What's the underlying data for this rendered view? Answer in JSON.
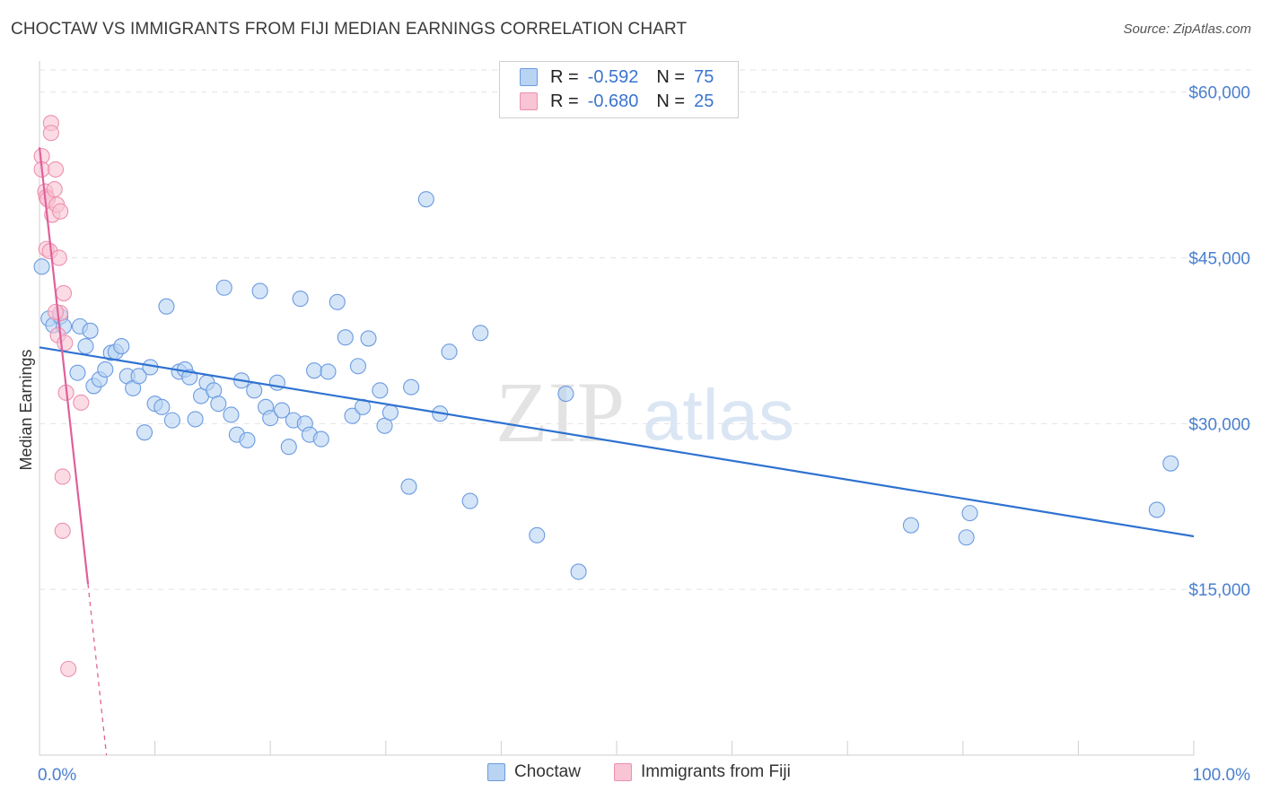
{
  "header": {
    "title": "CHOCTAW VS IMMIGRANTS FROM FIJI MEDIAN EARNINGS CORRELATION CHART",
    "source": "Source: ZipAtlas.com"
  },
  "watermark": {
    "zip": "ZIP",
    "atlas": "atlas"
  },
  "legend": {
    "rows": [
      {
        "r_label": "R =",
        "r_value": "-0.592",
        "n_label": "N =",
        "n_value": "75"
      },
      {
        "r_label": "R =",
        "r_value": "-0.680",
        "n_label": "N =",
        "n_value": "25"
      }
    ]
  },
  "bottom_legend": {
    "choctaw": "Choctaw",
    "fiji": "Immigrants from Fiji"
  },
  "colors": {
    "choctaw_fill": "#b9d3f3",
    "choctaw_stroke": "#6b9be0",
    "choctaw_line": "#2f72d0",
    "fiji_fill": "#f9c4d4",
    "fiji_stroke": "#ee8fae",
    "fiji_line": "#e0609a",
    "grid": "#e2e2e2",
    "tick_label": "#4a7fcf"
  },
  "chart_data": {
    "type": "scatter",
    "title": "CHOCTAW VS IMMIGRANTS FROM FIJI MEDIAN EARNINGS CORRELATION CHART",
    "xlabel": "",
    "ylabel": "Median Earnings",
    "xlim": [
      0,
      100
    ],
    "ylim": [
      0,
      62000
    ],
    "x_tick_labels": [
      "0.0%",
      "100.0%"
    ],
    "y_ticks": [
      15000,
      30000,
      45000,
      60000
    ],
    "y_tick_labels": [
      "$15,000",
      "$30,000",
      "$45,000",
      "$60,000"
    ],
    "grid": true,
    "legend_position": "top-center",
    "series": [
      {
        "name": "Choctaw",
        "points": [
          [
            0.2,
            44200
          ],
          [
            0.8,
            39500
          ],
          [
            1.2,
            38900
          ],
          [
            1.8,
            39700
          ],
          [
            2.1,
            38800
          ],
          [
            3.3,
            34600
          ],
          [
            3.5,
            38800
          ],
          [
            4.0,
            37000
          ],
          [
            4.4,
            38400
          ],
          [
            4.7,
            33400
          ],
          [
            5.2,
            34000
          ],
          [
            5.7,
            34900
          ],
          [
            6.2,
            36400
          ],
          [
            6.6,
            36500
          ],
          [
            7.1,
            37000
          ],
          [
            7.6,
            34300
          ],
          [
            8.1,
            33200
          ],
          [
            8.6,
            34300
          ],
          [
            9.1,
            29200
          ],
          [
            9.6,
            35100
          ],
          [
            10.0,
            31800
          ],
          [
            10.6,
            31500
          ],
          [
            11.0,
            40600
          ],
          [
            11.5,
            30300
          ],
          [
            12.1,
            34700
          ],
          [
            12.6,
            34900
          ],
          [
            13.0,
            34200
          ],
          [
            13.5,
            30400
          ],
          [
            14.0,
            32500
          ],
          [
            14.5,
            33700
          ],
          [
            15.1,
            33000
          ],
          [
            15.5,
            31800
          ],
          [
            16.0,
            42300
          ],
          [
            16.6,
            30800
          ],
          [
            17.1,
            29000
          ],
          [
            17.5,
            33900
          ],
          [
            18.0,
            28500
          ],
          [
            18.6,
            33000
          ],
          [
            19.1,
            42000
          ],
          [
            19.6,
            31500
          ],
          [
            20.0,
            30500
          ],
          [
            20.6,
            33700
          ],
          [
            21.0,
            31200
          ],
          [
            21.6,
            27900
          ],
          [
            22.0,
            30300
          ],
          [
            22.6,
            41300
          ],
          [
            23.0,
            30000
          ],
          [
            23.4,
            29000
          ],
          [
            23.8,
            34800
          ],
          [
            24.4,
            28600
          ],
          [
            25.0,
            34700
          ],
          [
            25.8,
            41000
          ],
          [
            26.5,
            37800
          ],
          [
            27.1,
            30700
          ],
          [
            27.6,
            35200
          ],
          [
            28.0,
            31500
          ],
          [
            28.5,
            37700
          ],
          [
            29.5,
            33000
          ],
          [
            29.9,
            29800
          ],
          [
            30.4,
            31000
          ],
          [
            32.0,
            24300
          ],
          [
            32.2,
            33300
          ],
          [
            33.5,
            50300
          ],
          [
            34.7,
            30900
          ],
          [
            35.5,
            36500
          ],
          [
            37.3,
            23000
          ],
          [
            38.2,
            38200
          ],
          [
            43.1,
            19900
          ],
          [
            45.6,
            32700
          ],
          [
            46.7,
            16600
          ],
          [
            75.5,
            20800
          ],
          [
            80.3,
            19700
          ],
          [
            80.6,
            21900
          ],
          [
            96.8,
            22200
          ],
          [
            98.0,
            26400
          ]
        ]
      },
      {
        "name": "Immigrants from Fiji",
        "points": [
          [
            0.2,
            54200
          ],
          [
            0.2,
            53000
          ],
          [
            0.5,
            51000
          ],
          [
            0.6,
            50500
          ],
          [
            0.6,
            45800
          ],
          [
            0.7,
            50300
          ],
          [
            0.9,
            45600
          ],
          [
            1.0,
            57200
          ],
          [
            1.0,
            56300
          ],
          [
            1.1,
            48900
          ],
          [
            1.3,
            51200
          ],
          [
            1.4,
            53000
          ],
          [
            1.5,
            49800
          ],
          [
            1.6,
            38000
          ],
          [
            1.7,
            45000
          ],
          [
            1.8,
            40000
          ],
          [
            1.8,
            49200
          ],
          [
            2.0,
            25200
          ],
          [
            2.0,
            20300
          ],
          [
            2.1,
            41800
          ],
          [
            2.2,
            37300
          ],
          [
            2.3,
            32800
          ],
          [
            2.5,
            7800
          ],
          [
            3.6,
            31900
          ],
          [
            1.4,
            40100
          ]
        ]
      }
    ],
    "trend_lines": [
      {
        "series": "Choctaw",
        "from": [
          0,
          36900
        ],
        "to": [
          100,
          19800
        ]
      },
      {
        "series": "Immigrants from Fiji",
        "from": [
          0,
          55000
        ],
        "to": [
          4.2,
          15500
        ],
        "dashed_to": [
          5.8,
          0
        ]
      }
    ]
  }
}
